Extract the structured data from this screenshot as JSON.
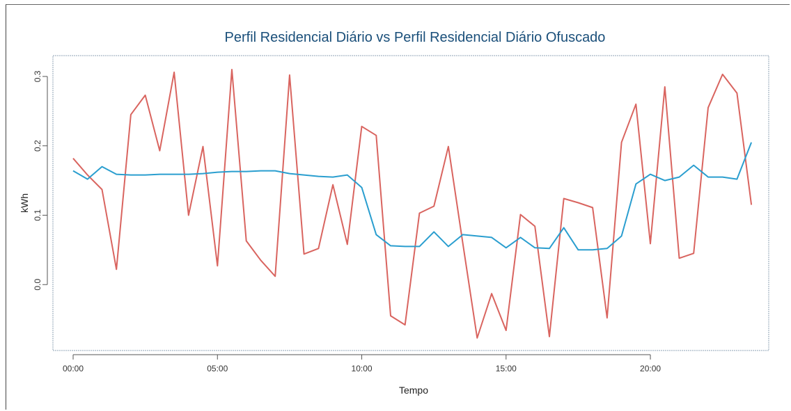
{
  "chart_data": {
    "type": "line",
    "title": "Perfil Residencial Diário vs Perfil Residencial Diário Ofuscado",
    "xlabel": "Tempo",
    "ylabel": "kWh",
    "x_ticks": [
      {
        "value": 0,
        "label": "00:00"
      },
      {
        "value": 5,
        "label": "05:00"
      },
      {
        "value": 10,
        "label": "10:00"
      },
      {
        "value": 15,
        "label": "15:00"
      },
      {
        "value": 20,
        "label": "20:00"
      }
    ],
    "y_ticks": [
      {
        "value": 0.0,
        "label": "0.0"
      },
      {
        "value": 0.1,
        "label": "0.1"
      },
      {
        "value": 0.2,
        "label": "0.2"
      },
      {
        "value": 0.3,
        "label": "0.3"
      }
    ],
    "xlim": [
      -0.7,
      24.1
    ],
    "ylim": [
      -0.095,
      0.33
    ],
    "x": [
      0,
      0.5,
      1,
      1.5,
      2,
      2.5,
      3,
      3.5,
      4,
      4.5,
      5,
      5.5,
      6,
      6.5,
      7,
      7.5,
      8,
      8.5,
      9,
      9.5,
      10,
      10.5,
      11,
      11.5,
      12,
      12.5,
      13,
      13.5,
      14,
      14.5,
      15,
      15.5,
      16,
      16.5,
      17,
      17.5,
      18,
      18.5,
      19,
      19.5,
      20,
      20.5,
      21,
      21.5,
      22,
      22.5,
      23,
      23.5
    ],
    "series": [
      {
        "color": "#d9645f",
        "values": [
          0.182,
          0.158,
          0.137,
          0.022,
          0.245,
          0.273,
          0.193,
          0.306,
          0.1,
          0.199,
          0.027,
          0.31,
          0.063,
          0.035,
          0.012,
          0.302,
          0.044,
          0.052,
          0.144,
          0.058,
          0.228,
          0.215,
          -0.045,
          -0.058,
          0.103,
          0.113,
          0.199,
          0.06,
          -0.077,
          -0.013,
          -0.066,
          0.101,
          0.084,
          -0.075,
          0.124,
          0.118,
          0.111,
          -0.048,
          0.205,
          0.26,
          0.059,
          0.285,
          0.038,
          0.045,
          0.255,
          0.303,
          0.276,
          0.115
        ]
      },
      {
        "color": "#2a9ecf",
        "values": [
          0.164,
          0.152,
          0.17,
          0.159,
          0.158,
          0.158,
          0.159,
          0.159,
          0.159,
          0.16,
          0.162,
          0.163,
          0.163,
          0.164,
          0.164,
          0.16,
          0.158,
          0.156,
          0.155,
          0.158,
          0.14,
          0.072,
          0.056,
          0.055,
          0.055,
          0.076,
          0.055,
          0.072,
          0.07,
          0.068,
          0.053,
          0.068,
          0.053,
          0.052,
          0.082,
          0.05,
          0.05,
          0.052,
          0.07,
          0.145,
          0.159,
          0.15,
          0.155,
          0.172,
          0.155,
          0.155,
          0.152,
          0.205
        ]
      }
    ],
    "grid": false,
    "legend": "none"
  }
}
